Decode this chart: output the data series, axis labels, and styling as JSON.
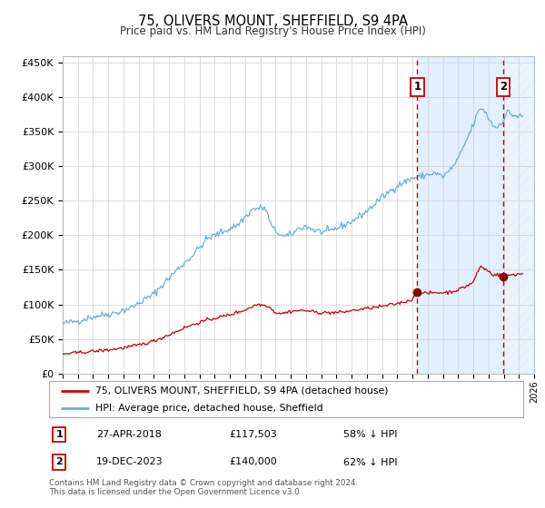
{
  "title": "75, OLIVERS MOUNT, SHEFFIELD, S9 4PA",
  "subtitle": "Price paid vs. HM Land Registry's House Price Index (HPI)",
  "legend_line1": "75, OLIVERS MOUNT, SHEFFIELD, S9 4PA (detached house)",
  "legend_line2": "HPI: Average price, detached house, Sheffield",
  "annotation1_date": "27-APR-2018",
  "annotation1_price": "£117,503",
  "annotation1_hpi": "58% ↓ HPI",
  "annotation1_year": 2018.32,
  "annotation1_value": 117503,
  "annotation2_date": "19-DEC-2023",
  "annotation2_price": "£140,000",
  "annotation2_hpi": "62% ↓ HPI",
  "annotation2_year": 2023.97,
  "annotation2_value": 140000,
  "hpi_color": "#6baed6",
  "price_color": "#cc0000",
  "marker_color": "#8b0000",
  "vline_color": "#cc0000",
  "bg_highlight_color": "#ddeeff",
  "hatch_color": "#bbccdd",
  "ylim_max": 460000,
  "xlim_start": 1995,
  "xlim_end": 2026,
  "footer": "Contains HM Land Registry data © Crown copyright and database right 2024.\nThis data is licensed under the Open Government Licence v3.0."
}
